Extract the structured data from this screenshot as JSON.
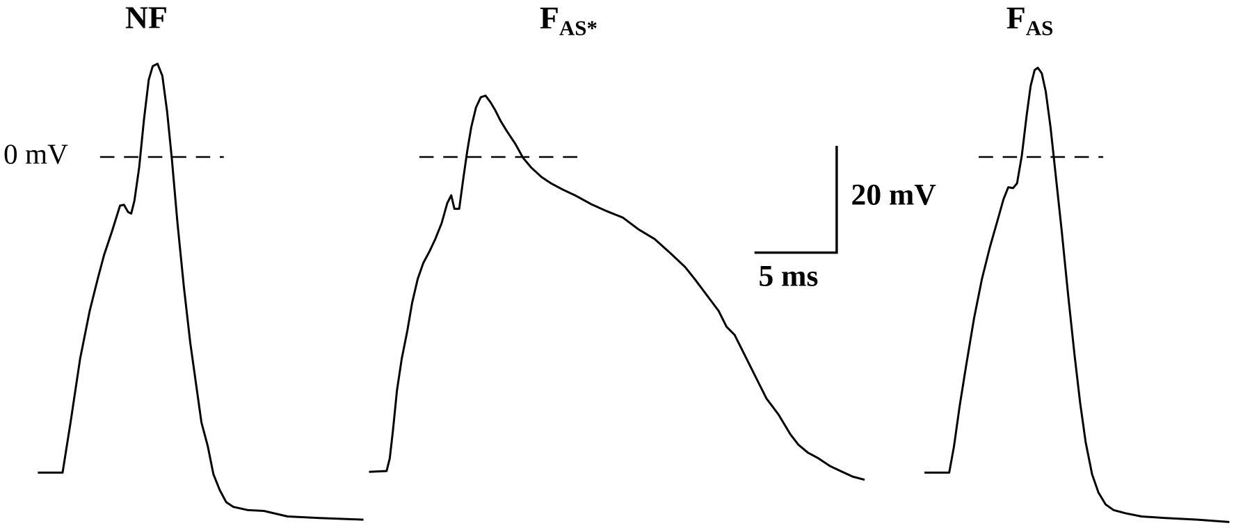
{
  "panels": [
    {
      "title": "NF"
    },
    {
      "title": {
        "main": "F",
        "sub": "AS*"
      }
    },
    {
      "title": {
        "main": "F",
        "sub": "AS"
      }
    }
  ],
  "reference_label": "0 mV",
  "scale_bar": {
    "vertical": "20 mV",
    "horizontal": "5 ms"
  }
}
